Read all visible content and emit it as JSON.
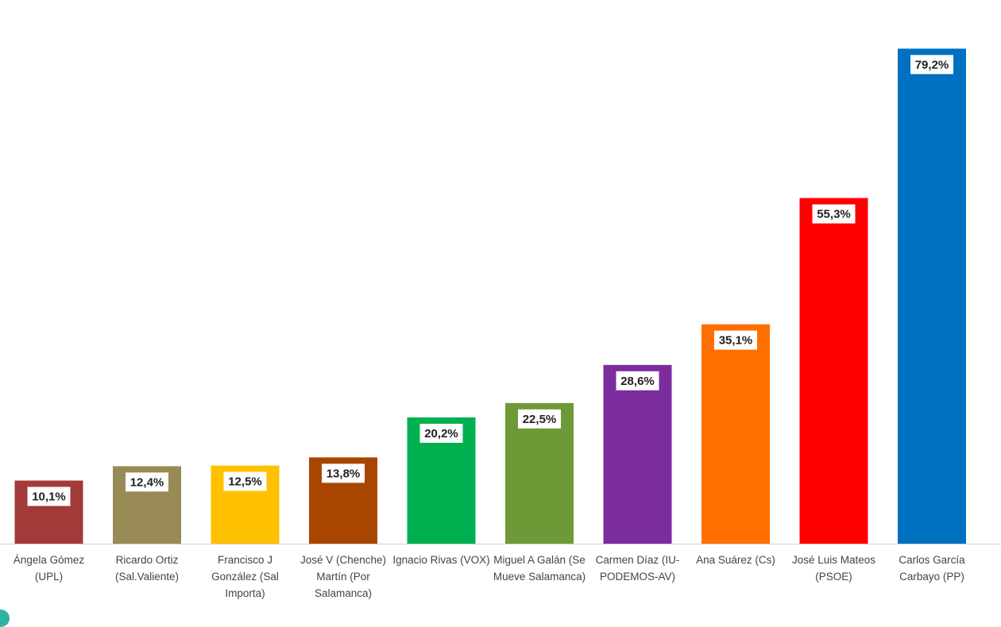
{
  "chart_data": {
    "type": "bar",
    "title": "",
    "xlabel": "",
    "ylabel": "",
    "ylim": [
      0,
      80
    ],
    "grid": false,
    "legend": "none",
    "categories": [
      "Ángela Gómez (UPL)",
      "Ricardo Ortiz (Sal.Valiente)",
      "Francisco J González (Sal Importa)",
      "José V (Chenche) Martín (Por Salamanca)",
      "Ignacio Rivas (VOX)",
      "Miguel A Galán (Se Mueve Salamanca)",
      "Carmen Díaz (IU-PODEMOS-AV)",
      "Ana Suárez (Cs)",
      "José Luis Mateos (PSOE)",
      "Carlos García Carbayo (PP)"
    ],
    "values": [
      10.1,
      12.4,
      12.5,
      13.8,
      20.2,
      22.5,
      28.6,
      35.1,
      55.3,
      79.2
    ],
    "data_labels": [
      "10,1%",
      "12,4%",
      "12,5%",
      "13,8%",
      "20,2%",
      "22,5%",
      "28,6%",
      "35,1%",
      "55,3%",
      "79,2%"
    ],
    "colors": [
      "#a33a3a",
      "#978a55",
      "#ffc000",
      "#a84600",
      "#00b050",
      "#6d9a37",
      "#7b2d9e",
      "#ff6f00",
      "#ff0000",
      "#0070c0"
    ]
  }
}
